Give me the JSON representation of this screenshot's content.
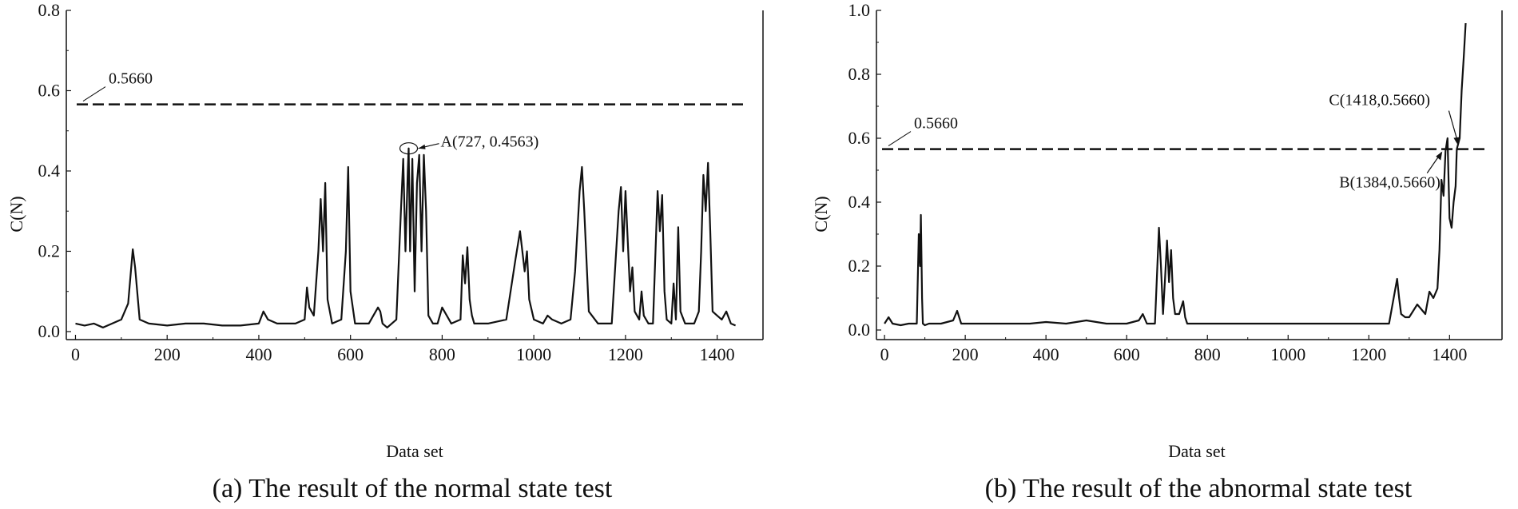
{
  "chart_data": [
    {
      "type": "line",
      "title": "",
      "caption": "(a) The result of the normal state test",
      "xlabel": "Data set",
      "ylabel": "C(N)",
      "xlim": [
        -20,
        1500
      ],
      "ylim": [
        -0.02,
        0.8
      ],
      "xticks": [
        0,
        200,
        400,
        600,
        800,
        1000,
        1200,
        1400
      ],
      "yticks": [
        "0.0",
        "0.2",
        "0.4",
        "0.6",
        "0.8"
      ],
      "threshold": {
        "value": 0.566,
        "label": "0.5660"
      },
      "annotations": [
        {
          "text": "A(727, 0.4563)",
          "x": 727,
          "y": 0.4563
        }
      ],
      "series": [
        {
          "name": "C(N)",
          "x": [
            0,
            20,
            40,
            60,
            80,
            100,
            115,
            125,
            130,
            140,
            160,
            200,
            240,
            280,
            320,
            360,
            400,
            410,
            420,
            440,
            480,
            500,
            505,
            510,
            520,
            530,
            535,
            540,
            545,
            550,
            560,
            580,
            590,
            595,
            600,
            610,
            640,
            660,
            665,
            670,
            680,
            700,
            710,
            715,
            720,
            725,
            727,
            730,
            735,
            740,
            745,
            750,
            755,
            760,
            765,
            770,
            780,
            790,
            800,
            810,
            820,
            840,
            845,
            850,
            855,
            860,
            865,
            870,
            880,
            900,
            940,
            960,
            970,
            975,
            980,
            985,
            990,
            1000,
            1020,
            1030,
            1040,
            1060,
            1080,
            1090,
            1100,
            1105,
            1110,
            1120,
            1140,
            1170,
            1185,
            1190,
            1195,
            1200,
            1210,
            1215,
            1220,
            1230,
            1235,
            1240,
            1250,
            1260,
            1270,
            1275,
            1280,
            1285,
            1290,
            1300,
            1305,
            1310,
            1315,
            1320,
            1330,
            1350,
            1360,
            1365,
            1370,
            1375,
            1380,
            1385,
            1390,
            1400,
            1410,
            1420,
            1430,
            1440
          ],
          "values": [
            0.02,
            0.015,
            0.02,
            0.01,
            0.02,
            0.03,
            0.07,
            0.205,
            0.16,
            0.03,
            0.02,
            0.015,
            0.02,
            0.02,
            0.015,
            0.015,
            0.02,
            0.05,
            0.03,
            0.02,
            0.02,
            0.03,
            0.11,
            0.06,
            0.04,
            0.2,
            0.33,
            0.2,
            0.37,
            0.08,
            0.02,
            0.03,
            0.2,
            0.41,
            0.1,
            0.02,
            0.02,
            0.06,
            0.05,
            0.02,
            0.01,
            0.03,
            0.3,
            0.43,
            0.2,
            0.4,
            0.4563,
            0.2,
            0.43,
            0.1,
            0.37,
            0.44,
            0.2,
            0.44,
            0.3,
            0.04,
            0.02,
            0.02,
            0.06,
            0.04,
            0.02,
            0.03,
            0.19,
            0.12,
            0.21,
            0.08,
            0.04,
            0.02,
            0.02,
            0.02,
            0.03,
            0.18,
            0.25,
            0.2,
            0.15,
            0.2,
            0.08,
            0.03,
            0.02,
            0.04,
            0.03,
            0.02,
            0.03,
            0.15,
            0.35,
            0.41,
            0.3,
            0.05,
            0.02,
            0.02,
            0.3,
            0.36,
            0.2,
            0.35,
            0.1,
            0.16,
            0.05,
            0.03,
            0.1,
            0.04,
            0.02,
            0.02,
            0.35,
            0.25,
            0.34,
            0.1,
            0.03,
            0.02,
            0.12,
            0.03,
            0.26,
            0.05,
            0.02,
            0.02,
            0.05,
            0.2,
            0.39,
            0.3,
            0.42,
            0.25,
            0.05,
            0.04,
            0.03,
            0.05,
            0.02,
            0.015
          ]
        }
      ]
    },
    {
      "type": "line",
      "title": "",
      "caption": "(b) The result of the abnormal state test",
      "xlabel": "Data set",
      "ylabel": "C(N)",
      "xlim": [
        -20,
        1530
      ],
      "ylim": [
        -0.03,
        1.0
      ],
      "xticks": [
        0,
        200,
        400,
        600,
        800,
        1000,
        1200,
        1400
      ],
      "yticks": [
        "0.0",
        "0.2",
        "0.4",
        "0.6",
        "0.8",
        "1.0"
      ],
      "threshold": {
        "value": 0.566,
        "label": "0.5660"
      },
      "annotations": [
        {
          "text": "C(1418,0.5660)",
          "x": 1418,
          "y": 0.566
        },
        {
          "text": "B(1384,0.5660)",
          "x": 1384,
          "y": 0.566
        }
      ],
      "series": [
        {
          "name": "C(N)",
          "x": [
            0,
            10,
            20,
            40,
            60,
            80,
            85,
            88,
            90,
            93,
            95,
            100,
            110,
            140,
            170,
            180,
            190,
            200,
            240,
            300,
            360,
            400,
            450,
            500,
            550,
            600,
            630,
            640,
            650,
            670,
            680,
            685,
            690,
            695,
            700,
            705,
            710,
            715,
            720,
            730,
            740,
            745,
            750,
            760,
            780,
            800,
            850,
            900,
            950,
            1000,
            1050,
            1100,
            1150,
            1200,
            1250,
            1270,
            1275,
            1280,
            1290,
            1300,
            1320,
            1340,
            1350,
            1360,
            1370,
            1375,
            1380,
            1385,
            1390,
            1395,
            1400,
            1405,
            1410,
            1415,
            1418,
            1425,
            1430,
            1435,
            1440
          ],
          "values": [
            0.02,
            0.04,
            0.02,
            0.015,
            0.02,
            0.02,
            0.3,
            0.2,
            0.36,
            0.1,
            0.02,
            0.015,
            0.02,
            0.02,
            0.03,
            0.06,
            0.02,
            0.02,
            0.02,
            0.02,
            0.02,
            0.025,
            0.02,
            0.03,
            0.02,
            0.02,
            0.03,
            0.05,
            0.02,
            0.02,
            0.32,
            0.2,
            0.05,
            0.16,
            0.28,
            0.15,
            0.25,
            0.1,
            0.05,
            0.05,
            0.09,
            0.04,
            0.02,
            0.02,
            0.02,
            0.02,
            0.02,
            0.02,
            0.02,
            0.02,
            0.02,
            0.02,
            0.02,
            0.02,
            0.02,
            0.16,
            0.1,
            0.05,
            0.04,
            0.04,
            0.08,
            0.05,
            0.12,
            0.1,
            0.13,
            0.25,
            0.47,
            0.42,
            0.56,
            0.6,
            0.35,
            0.32,
            0.4,
            0.45,
            0.566,
            0.6,
            0.75,
            0.85,
            0.96
          ]
        }
      ]
    }
  ]
}
